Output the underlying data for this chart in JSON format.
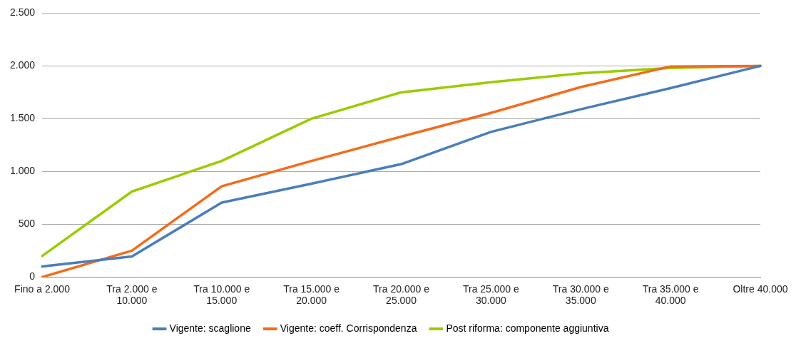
{
  "chart_data": {
    "type": "line",
    "categories": [
      "Fino a 2.000",
      "Tra 2.000 e 10.000",
      "Tra 10.000 e 15.000",
      "Tra 15.000 e 20.000",
      "Tra 20.000 e 25.000",
      "Tra 25.000 e 30.000",
      "Tra 30.000 e 35.000",
      "Tra 35.000 e 40.000",
      "Oltre 40.000"
    ],
    "series": [
      {
        "name": "Vigente: scaglione",
        "color": "#4a7ebb",
        "values": [
          100,
          195,
          705,
          885,
          1070,
          1375,
          1590,
          1790,
          2000
        ]
      },
      {
        "name": "Vigente: coeff. Corrispondenza",
        "color": "#f46b1b",
        "values": [
          0,
          250,
          860,
          1100,
          1330,
          1555,
          1800,
          1995,
          2000
        ]
      },
      {
        "name": "Post riforma: componente aggiuntiva",
        "color": "#99cc00",
        "values": [
          200,
          810,
          1100,
          1500,
          1750,
          1845,
          1930,
          1980,
          2000
        ]
      }
    ],
    "ylim": [
      0,
      2500
    ],
    "yticks": [
      {
        "value": 0,
        "label": "0"
      },
      {
        "value": 500,
        "label": "500"
      },
      {
        "value": 1000,
        "label": "1.000"
      },
      {
        "value": 1500,
        "label": "1.500"
      },
      {
        "value": 2000,
        "label": "2.000"
      },
      {
        "value": 2500,
        "label": "2.500"
      }
    ],
    "grid": "y",
    "legend": "bottom",
    "marker": "none",
    "line_style": "solid"
  }
}
